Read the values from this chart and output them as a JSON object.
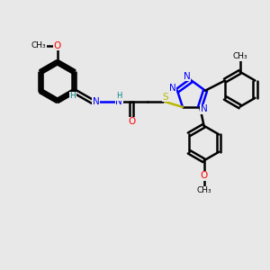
{
  "bg_color": "#e8e8e8",
  "bond_color": "#000000",
  "N_color": "#0000ff",
  "O_color": "#ff0000",
  "S_color": "#b8b800",
  "H_color": "#008080",
  "line_width": 1.8,
  "figsize": [
    3.0,
    3.0
  ],
  "dpi": 100,
  "xlim": [
    0,
    10
  ],
  "ylim": [
    0,
    10
  ]
}
